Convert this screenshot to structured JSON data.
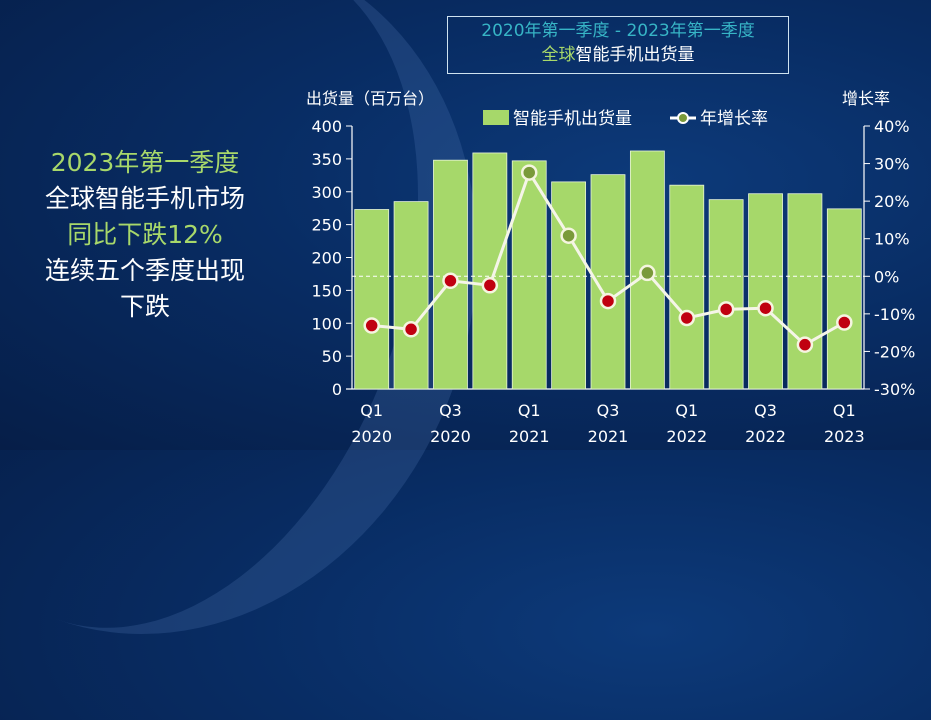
{
  "headline": {
    "line1": "2023年第一季度",
    "line2": "全球智能手机市场",
    "line3": "同比下跌12%",
    "line4": "连续五个季度出现",
    "line5": "下跌"
  },
  "chart_data": {
    "type": "bar",
    "title_line1": "2020年第一季度 - 2023年第一季度",
    "title_line2_highlight": "全球",
    "title_line2_rest": "智能手机出货量",
    "ylabel": "出货量（百万台）",
    "y2label": "增长率",
    "ylim": [
      0,
      400
    ],
    "y2lim": [
      -30,
      40
    ],
    "yticks": [
      "0",
      "50",
      "100",
      "150",
      "200",
      "250",
      "300",
      "350",
      "400"
    ],
    "y2ticks": [
      "-30%",
      "-20%",
      "-10%",
      "0%",
      "10%",
      "20%",
      "30%",
      "40%"
    ],
    "categories": [
      "Q1 2020",
      "Q2 2020",
      "Q3 2020",
      "Q4 2020",
      "Q1 2021",
      "Q2 2021",
      "Q3 2021",
      "Q4 2021",
      "Q1 2022",
      "Q2 2022",
      "Q3 2022",
      "Q4 2022",
      "Q1 2023"
    ],
    "xtick_labels": [
      {
        "i": 0,
        "q": "Q1",
        "y": "2020"
      },
      {
        "i": 2,
        "q": "Q3",
        "y": "2020"
      },
      {
        "i": 4,
        "q": "Q1",
        "y": "2021"
      },
      {
        "i": 6,
        "q": "Q3",
        "y": "2021"
      },
      {
        "i": 8,
        "q": "Q1",
        "y": "2022"
      },
      {
        "i": 10,
        "q": "Q3",
        "y": "2022"
      },
      {
        "i": 12,
        "q": "Q1",
        "y": "2023"
      }
    ],
    "series": [
      {
        "name": "智能手机出货量",
        "type": "bar",
        "axis": "left",
        "values": [
          273,
          285,
          348,
          359,
          347,
          315,
          326,
          362,
          310,
          288,
          297,
          297,
          274
        ]
      },
      {
        "name": "年增长率",
        "type": "line",
        "axis": "right",
        "unit": "%",
        "values": [
          -13.1,
          -14.1,
          -1.2,
          -2.4,
          27.6,
          10.8,
          -6.6,
          0.9,
          -11.1,
          -8.8,
          -8.5,
          -18.2,
          -12.3
        ]
      }
    ],
    "legend": "top",
    "colors": {
      "bar": "#a6d86a",
      "line": "#ffffff",
      "negative_marker": "#c00010",
      "positive_marker": "#7a9a3a"
    }
  }
}
